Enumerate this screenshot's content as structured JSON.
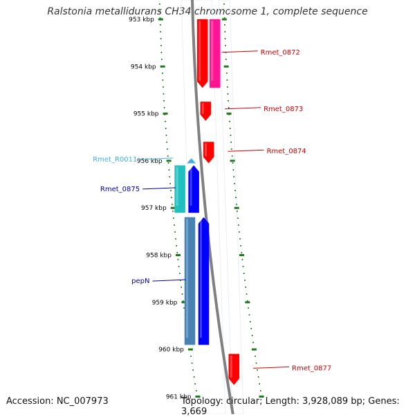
{
  "title": "Ralstonia metallidurans CH34 chromosome 1, complete sequence",
  "accession": "Accession: NC_007973",
  "topology": "Topology: circular; Length: 3,928,089 bp; Genes: 3,669",
  "colors": {
    "backbone": "#808080",
    "tick": "#1a7a1a",
    "red_gene": "#ff0000",
    "pink_gene": "#ff1493",
    "blue_gene": "#0000ff",
    "cyan_gene": "#20c0c0",
    "steel_gene": "#4682b4",
    "trna": "#40b0e0",
    "red_label": "#cc0000",
    "blue_label": "#000099",
    "cyan_label": "#40b0e0",
    "kbp_label": "#000000"
  },
  "scale": {
    "unit": "kbp",
    "ticks": [
      {
        "kbp": 953,
        "label": "953 kbp"
      },
      {
        "kbp": 954,
        "label": "954 kbp"
      },
      {
        "kbp": 955,
        "label": "955 kbp"
      },
      {
        "kbp": 956,
        "label": "956 kbp"
      },
      {
        "kbp": 957,
        "label": "957 kbp"
      },
      {
        "kbp": 958,
        "label": "958 kbp"
      },
      {
        "kbp": 959,
        "label": "959 kbp"
      },
      {
        "kbp": 960,
        "label": "960 kbp"
      },
      {
        "kbp": 961,
        "label": "961 kbp"
      }
    ]
  },
  "features": [
    {
      "name": "Rmet_0872",
      "kind": "gene",
      "strand": "forward",
      "start_kbp": 953.0,
      "end_kbp": 954.45,
      "color": "red",
      "track": "inner-forward"
    },
    {
      "name": "Rmet_0872",
      "kind": "cds",
      "strand": "forward",
      "start_kbp": 953.0,
      "end_kbp": 954.45,
      "color": "pink",
      "track": "outer-forward"
    },
    {
      "name": "Rmet_0873",
      "kind": "gene",
      "strand": "forward",
      "start_kbp": 954.75,
      "end_kbp": 955.15,
      "color": "red",
      "track": "inner-forward"
    },
    {
      "name": "Rmet_0874",
      "kind": "gene",
      "strand": "forward",
      "start_kbp": 955.6,
      "end_kbp": 956.05,
      "color": "red",
      "track": "inner-forward"
    },
    {
      "name": "Rmet_R0011",
      "kind": "tRNA",
      "strand": "reverse",
      "start_kbp": 955.95,
      "end_kbp": 956.05,
      "color": "trna",
      "track": "inner-reverse"
    },
    {
      "name": "Rmet_0875",
      "kind": "gene",
      "strand": "reverse",
      "start_kbp": 956.1,
      "end_kbp": 957.1,
      "color": "blue",
      "track": "inner-reverse"
    },
    {
      "name": "Rmet_0875",
      "kind": "cds",
      "strand": "reverse",
      "start_kbp": 956.1,
      "end_kbp": 957.1,
      "color": "cyan",
      "track": "outer-reverse"
    },
    {
      "name": "pepN",
      "kind": "gene",
      "strand": "reverse",
      "start_kbp": 957.2,
      "end_kbp": 959.9,
      "color": "blue",
      "track": "inner-reverse"
    },
    {
      "name": "pepN",
      "kind": "cds",
      "strand": "reverse",
      "start_kbp": 957.2,
      "end_kbp": 959.9,
      "color": "steel",
      "track": "outer-reverse"
    },
    {
      "name": "Rmet_0877",
      "kind": "gene",
      "strand": "forward",
      "start_kbp": 960.1,
      "end_kbp": 960.75,
      "color": "red",
      "track": "inner-forward"
    }
  ],
  "labels": [
    {
      "text": "Rmet_0872",
      "color": "red_label",
      "side": "right",
      "anchor_kbp": 953.7
    },
    {
      "text": "Rmet_0873",
      "color": "red_label",
      "side": "right",
      "anchor_kbp": 954.9
    },
    {
      "text": "Rmet_0874",
      "color": "red_label",
      "side": "right",
      "anchor_kbp": 955.8
    },
    {
      "text": "Rmet_R0011",
      "color": "cyan_label",
      "side": "left",
      "anchor_kbp": 955.97
    },
    {
      "text": "Rmet_0875",
      "color": "blue_label",
      "side": "left",
      "anchor_kbp": 956.6
    },
    {
      "text": "pepN",
      "color": "blue_label",
      "side": "left",
      "anchor_kbp": 958.55
    },
    {
      "text": "Rmet_0877",
      "color": "red_label",
      "side": "right",
      "anchor_kbp": 960.4
    }
  ]
}
